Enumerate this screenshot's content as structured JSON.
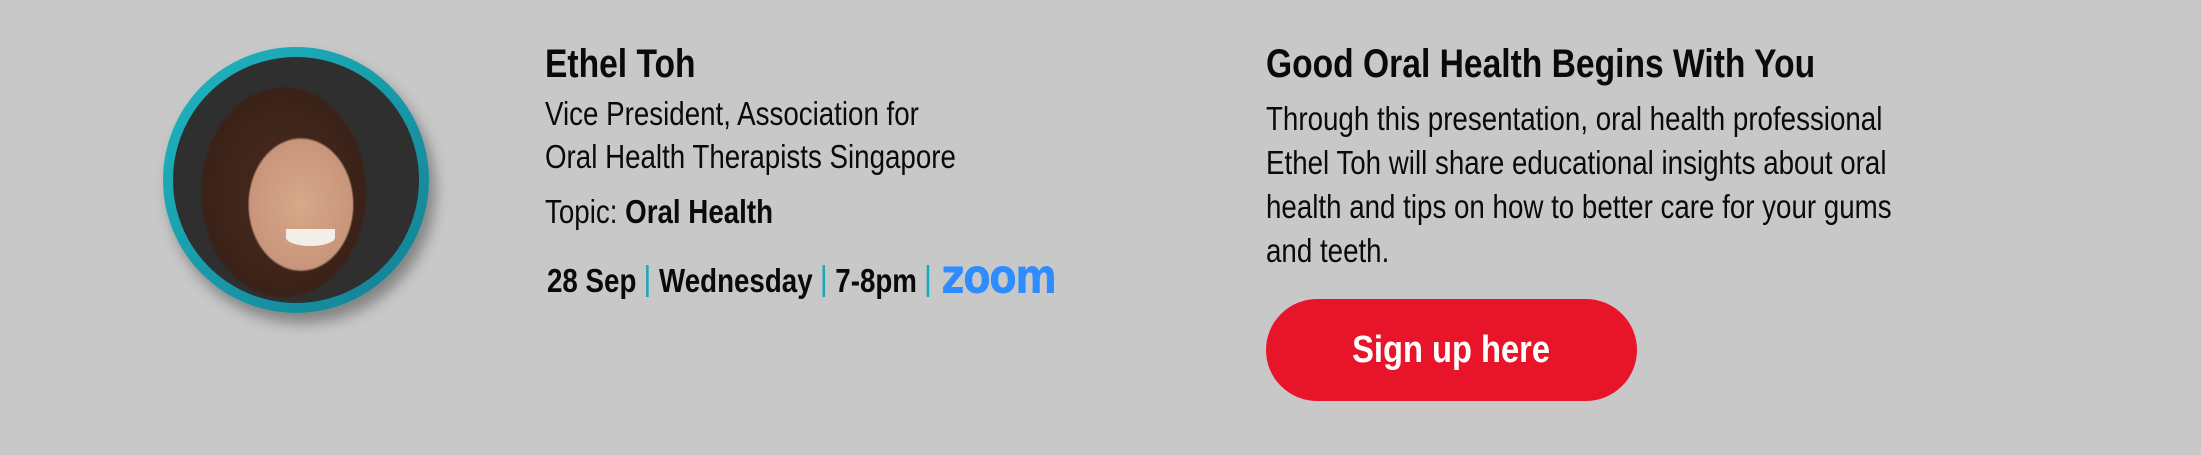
{
  "speaker": {
    "name": "Ethel Toh",
    "role_lines": [
      "Vice President, Association for",
      "Oral Health Therapists Singapore"
    ],
    "topic_label": "Topic:",
    "topic": "Oral Health"
  },
  "schedule": {
    "date": "28 Sep",
    "day": "Wednesday",
    "time": "7-8pm",
    "platform": "zoom"
  },
  "event": {
    "title": "Good Oral Health Begins With You",
    "description_lines": [
      "Through this presentation, oral health professional",
      "Ethel Toh will share educational insights about oral",
      "health and tips on how to better care for your gums",
      "and teeth."
    ],
    "cta_label": "Sign up here"
  },
  "colors": {
    "background": "#c8c8c8",
    "cta": "#e8152a",
    "accent": "#1aa8b8",
    "zoom_brand": "#2d8cff"
  }
}
